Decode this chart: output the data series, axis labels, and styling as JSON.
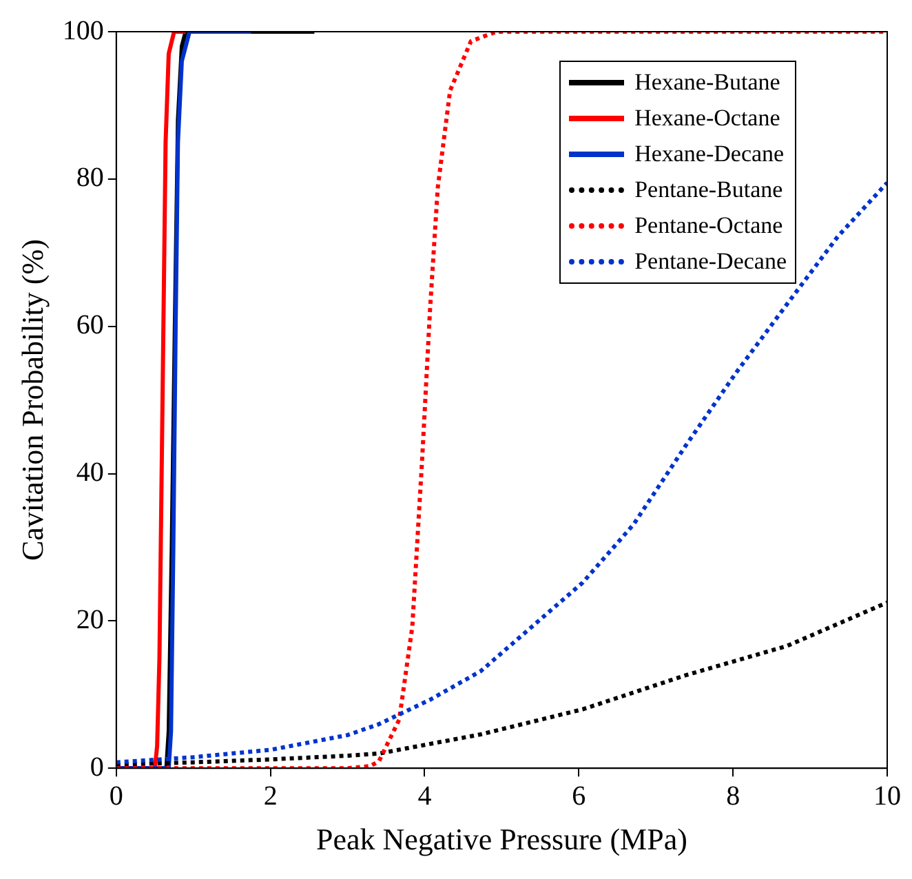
{
  "chart_data": {
    "type": "line",
    "xlabel": "Peak Negative Pressure (MPa)",
    "ylabel": "Cavitation Probability (%)",
    "xlim": [
      0,
      10
    ],
    "xticks": [
      0,
      2,
      4,
      6,
      8,
      10
    ],
    "ylim": [
      0,
      100
    ],
    "yticks": [
      0,
      20,
      40,
      60,
      80,
      100
    ],
    "grid": false,
    "legend": "top right",
    "marker": "none",
    "series": [
      {
        "name": "Hexane-Butane",
        "color": "#000000",
        "line_style": "solid",
        "x": [
          0,
          0.65,
          0.68,
          0.72,
          0.76,
          0.8,
          0.85,
          0.9,
          2.57
        ],
        "values": [
          0,
          0,
          5,
          30,
          60,
          88,
          98,
          100,
          100
        ]
      },
      {
        "name": "Hexane-Octane",
        "color": "#ff0000",
        "line_style": "solid",
        "x": [
          0,
          0.5,
          0.53,
          0.56,
          0.6,
          0.64,
          0.68,
          0.75,
          0.9
        ],
        "values": [
          0,
          0,
          3,
          15,
          50,
          85,
          97,
          100,
          100
        ]
      },
      {
        "name": "Hexane-Decane",
        "color": "#0033cc",
        "line_style": "solid",
        "x": [
          0,
          0.68,
          0.71,
          0.74,
          0.77,
          0.8,
          0.85,
          0.95,
          1.75
        ],
        "values": [
          0,
          0,
          5,
          30,
          60,
          85,
          96,
          100,
          100
        ]
      },
      {
        "name": "Pentane-Butane",
        "color": "#000000",
        "line_style": "dotted",
        "x": [
          0,
          1,
          2,
          3,
          3.41,
          4.73,
          6.05,
          7.38,
          8.7,
          10
        ],
        "values": [
          0.5,
          0.8,
          1.2,
          1.7,
          2,
          4.6,
          8,
          12.6,
          16.6,
          22.5
        ]
      },
      {
        "name": "Pentane-Octane",
        "color": "#ff0000",
        "line_style": "dotted",
        "x": [
          0,
          3,
          3.3,
          3.41,
          3.67,
          3.84,
          3.97,
          4.07,
          4.17,
          4.33,
          4.6,
          4.93,
          10
        ],
        "values": [
          0,
          0,
          0.3,
          1,
          6.6,
          19.2,
          42.4,
          62.3,
          78.8,
          92,
          98.7,
          100,
          100
        ]
      },
      {
        "name": "Pentane-Decane",
        "color": "#0033cc",
        "line_style": "dotted",
        "x": [
          0,
          1,
          2,
          3,
          3.41,
          4.07,
          4.73,
          5.39,
          6.05,
          6.71,
          7.38,
          8.04,
          8.7,
          9.36,
          10
        ],
        "values": [
          0.8,
          1.5,
          2.5,
          4.5,
          6,
          9.3,
          13.2,
          19.2,
          25.2,
          33.1,
          43.7,
          53.7,
          63,
          72.2,
          79.5
        ]
      }
    ]
  }
}
